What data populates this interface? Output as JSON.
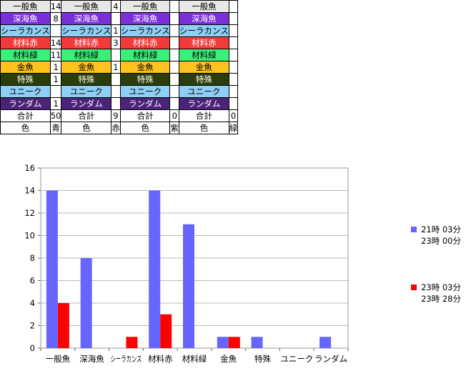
{
  "table": {
    "blocks": [
      {
        "rows": [
          {
            "label": "一般魚",
            "value": "14",
            "color": "#e8e8e8"
          },
          {
            "label": "深海魚",
            "value": "8",
            "color": "#7b2fd6"
          },
          {
            "label": "シーラカンス",
            "value": "",
            "color": "#8fcff5"
          },
          {
            "label": "材料赤",
            "value": "14",
            "color": "#f23a3a"
          },
          {
            "label": "材料緑",
            "value": "11",
            "color": "#39f07a"
          },
          {
            "label": "金魚",
            "value": "1",
            "color": "#ffc21e"
          },
          {
            "label": "特殊",
            "value": "1",
            "color": "#2a3d0a"
          },
          {
            "label": "ユニーク",
            "value": "",
            "color": "#8fcff5"
          },
          {
            "label": "ランダム",
            "value": "1",
            "color": "#4b2378"
          }
        ],
        "total_label": "合計",
        "total_value": "50",
        "color_label": "色",
        "color_value": "青"
      },
      {
        "rows": [
          {
            "label": "一般魚",
            "value": "4",
            "color": "#e8e8e8"
          },
          {
            "label": "深海魚",
            "value": "",
            "color": "#7b2fd6"
          },
          {
            "label": "シーラカンス",
            "value": "1",
            "color": "#8fcff5"
          },
          {
            "label": "材料赤",
            "value": "3",
            "color": "#f23a3a"
          },
          {
            "label": "材料緑",
            "value": "",
            "color": "#39f07a"
          },
          {
            "label": "金魚",
            "value": "1",
            "color": "#ffc21e"
          },
          {
            "label": "特殊",
            "value": "",
            "color": "#2a3d0a"
          },
          {
            "label": "ユニーク",
            "value": "",
            "color": "#8fcff5"
          },
          {
            "label": "ランダム",
            "value": "",
            "color": "#4b2378"
          }
        ],
        "total_label": "合計",
        "total_value": "9",
        "color_label": "色",
        "color_value": "赤"
      },
      {
        "rows": [
          {
            "label": "一般魚",
            "value": "",
            "color": "#e8e8e8"
          },
          {
            "label": "深海魚",
            "value": "",
            "color": "#7b2fd6"
          },
          {
            "label": "シーラカンス",
            "value": "",
            "color": "#8fcff5"
          },
          {
            "label": "材料赤",
            "value": "",
            "color": "#f23a3a"
          },
          {
            "label": "材料緑",
            "value": "",
            "color": "#39f07a"
          },
          {
            "label": "金魚",
            "value": "",
            "color": "#ffc21e"
          },
          {
            "label": "特殊",
            "value": "",
            "color": "#2a3d0a"
          },
          {
            "label": "ユニーク",
            "value": "",
            "color": "#8fcff5"
          },
          {
            "label": "ランダム",
            "value": "",
            "color": "#4b2378"
          }
        ],
        "total_label": "合計",
        "total_value": "0",
        "color_label": "色",
        "color_value": "紫"
      },
      {
        "rows": [
          {
            "label": "一般魚",
            "value": "",
            "color": "#e8e8e8"
          },
          {
            "label": "深海魚",
            "value": "",
            "color": "#7b2fd6"
          },
          {
            "label": "シーラカンス",
            "value": "",
            "color": "#8fcff5"
          },
          {
            "label": "材料赤",
            "value": "",
            "color": "#f23a3a"
          },
          {
            "label": "材料緑",
            "value": "",
            "color": "#39f07a"
          },
          {
            "label": "金魚",
            "value": "",
            "color": "#ffc21e"
          },
          {
            "label": "特殊",
            "value": "",
            "color": "#2a3d0a"
          },
          {
            "label": "ユニーク",
            "value": "",
            "color": "#8fcff5"
          },
          {
            "label": "ランダム",
            "value": "",
            "color": "#4b2378"
          }
        ],
        "total_label": "合計",
        "total_value": "0",
        "color_label": "色",
        "color_value": "緑"
      }
    ]
  },
  "dark_text_color": "#000000",
  "light_text_color": "#ffffff",
  "chart_data": {
    "type": "bar",
    "categories": [
      "一般魚",
      "深海魚",
      "シーラカンス",
      "材料赤",
      "材料緑",
      "金魚",
      "特殊",
      "ユニーク",
      "ランダム"
    ],
    "series": [
      {
        "name": "21時 03分\n23時 00分",
        "color": "#6666ff",
        "values": [
          14,
          8,
          0,
          14,
          11,
          1,
          1,
          0,
          1
        ]
      },
      {
        "name": "23時 03分\n23時 28分",
        "color": "#ff0000",
        "values": [
          4,
          0,
          1,
          3,
          0,
          1,
          0,
          0,
          0
        ]
      }
    ],
    "yticks": [
      "0",
      "2",
      "4",
      "6",
      "8",
      "10",
      "12",
      "14",
      "16"
    ],
    "ylim": [
      0,
      16
    ],
    "grid": true,
    "legend_position": "right"
  }
}
